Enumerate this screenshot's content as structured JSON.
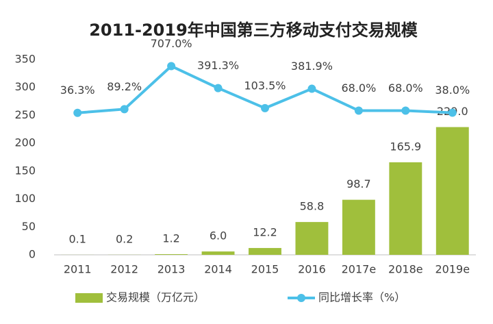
{
  "chart_data": {
    "type": "bar",
    "title": "2011-2019年中国第三方移动支付交易规模",
    "categories": [
      "2011",
      "2012",
      "2013",
      "2014",
      "2015",
      "2016",
      "2017e",
      "2018e",
      "2019e"
    ],
    "series": [
      {
        "name": "交易规模（万亿元）",
        "type": "bar",
        "color": "#a0bf3c",
        "values": [
          0.1,
          0.2,
          1.2,
          6.0,
          12.2,
          58.8,
          98.7,
          165.9,
          229.0
        ],
        "value_labels": [
          "0.1",
          "0.2",
          "1.2",
          "6.0",
          "12.2",
          "58.8",
          "98.7",
          "165.9",
          "229.0"
        ]
      },
      {
        "name": "同比增长率（%）",
        "type": "line",
        "axis": "y2",
        "color": "#4cc0e8",
        "values": [
          36.3,
          89.2,
          707.0,
          391.3,
          103.5,
          381.9,
          68.0,
          68.0,
          38.0
        ],
        "value_labels": [
          "36.3%",
          "89.2%",
          "707.0%",
          "391.3%",
          "103.5%",
          "381.9%",
          "68.0%",
          "68.0%",
          "38.0%"
        ]
      }
    ],
    "ylim": [
      0,
      350
    ],
    "yticks": [
      0,
      50,
      100,
      150,
      200,
      250,
      300,
      350
    ],
    "y2lim": [
      -2000,
      800
    ],
    "legend": "bottom"
  }
}
